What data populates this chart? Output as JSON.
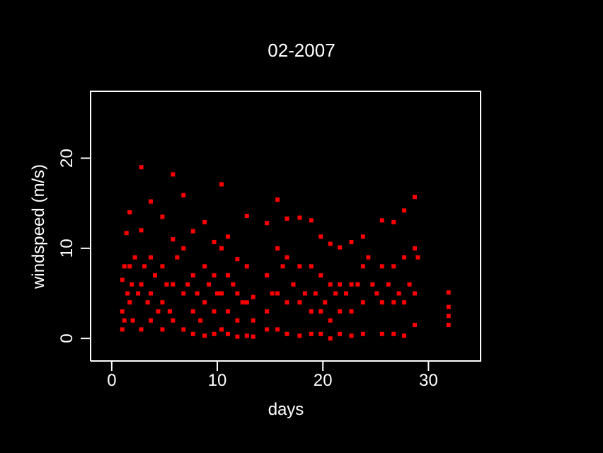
{
  "chart_data": {
    "type": "scatter",
    "title": "02-2007",
    "xlabel": "days",
    "ylabel": "windspeed (m/s)",
    "xlim": [
      -2,
      35
    ],
    "ylim": [
      -2.5,
      27.5
    ],
    "xticks": [
      0,
      10,
      20,
      30
    ],
    "yticks": [
      0,
      10,
      20
    ],
    "marker": "square",
    "series": [
      {
        "color": "#ff0000",
        "x": [
          1,
          1,
          1,
          1.2,
          1.2,
          1.4,
          1.5,
          1.7,
          1.7,
          1.7,
          1.9,
          2,
          2.2,
          2.5,
          2.8,
          2.8,
          2.8,
          2.8,
          3.1,
          3.4,
          3.7,
          3.7,
          3.7,
          3.7,
          4.1,
          4.4,
          4.8,
          4.8,
          4.8,
          4.8,
          5.2,
          5.5,
          5.8,
          5.8,
          5.8,
          5.8,
          6.2,
          6.8,
          6.8,
          6.8,
          6.8,
          7.2,
          7.7,
          7.7,
          7.7,
          7.7,
          8.1,
          8.4,
          8.8,
          8.8,
          8.8,
          8.8,
          9.2,
          9.7,
          9.7,
          9.7,
          9.7,
          10,
          10.4,
          10.4,
          10.4,
          10.4,
          11,
          11,
          11,
          11,
          11.5,
          11.9,
          11.9,
          11.9,
          11.9,
          12.4,
          12.8,
          12.8,
          12.8,
          12.8,
          13.4,
          13.4,
          13.4,
          14.7,
          14.7,
          14.7,
          14.7,
          15.2,
          15.7,
          15.7,
          15.7,
          15.7,
          16.2,
          16.6,
          16.6,
          16.6,
          16.6,
          17.2,
          17.8,
          17.8,
          17.8,
          17.8,
          18.3,
          18.9,
          18.9,
          18.9,
          18.9,
          19.3,
          19.8,
          19.8,
          19.8,
          19.8,
          20.2,
          20.7,
          20.7,
          20.7,
          20.7,
          21.2,
          21.6,
          21.6,
          21.6,
          21.6,
          22.2,
          22.7,
          22.7,
          22.7,
          22.7,
          23.3,
          23.8,
          23.8,
          23.8,
          23.8,
          24.3,
          24.7,
          25.1,
          25.6,
          25.6,
          25.6,
          25.6,
          26.2,
          26.7,
          26.7,
          26.7,
          26.7,
          27.2,
          27.7,
          27.7,
          27.7,
          27.7,
          28.2,
          28.7,
          28.7,
          28.7,
          28.7,
          29,
          31.9,
          31.9,
          31.9,
          31.9
        ],
        "values": [
          6.5,
          3,
          1,
          8,
          2,
          11.7,
          5,
          14,
          8,
          4,
          6,
          2,
          9,
          5,
          19,
          12,
          6,
          1,
          8,
          4,
          15.2,
          9,
          5,
          2,
          7,
          3,
          13.5,
          8,
          4,
          1,
          6,
          3,
          18.2,
          11,
          6,
          2,
          9,
          15.9,
          10,
          5,
          1,
          6,
          11.9,
          7,
          3,
          0.5,
          5,
          2,
          12.9,
          8,
          4,
          0.3,
          6,
          10.7,
          7,
          3,
          0.5,
          5,
          17.1,
          10,
          5,
          1,
          11.3,
          7,
          3,
          0.5,
          6,
          8.8,
          5,
          2,
          0.2,
          4,
          13.6,
          8,
          4,
          0.3,
          4.6,
          2,
          0.2,
          12.8,
          7,
          3,
          1,
          5,
          15.4,
          10,
          5,
          1,
          8,
          13.3,
          9,
          4,
          0.5,
          6,
          13.4,
          8,
          4,
          0.3,
          5,
          13.1,
          8,
          3,
          0.5,
          5,
          11.3,
          7,
          3,
          0.5,
          4,
          10.5,
          6,
          2,
          0,
          5,
          10.1,
          6,
          3,
          0.5,
          5,
          10.7,
          6,
          3,
          0.3,
          6,
          11.3,
          8,
          4,
          0.5,
          9,
          6,
          5,
          13.1,
          8,
          4,
          0.5,
          6,
          12.9,
          8,
          4,
          0.5,
          5,
          14.2,
          9,
          4,
          0.3,
          6,
          15.7,
          10,
          5,
          1.5,
          9,
          5.1,
          3.5,
          2.5,
          1.5
        ]
      }
    ]
  }
}
